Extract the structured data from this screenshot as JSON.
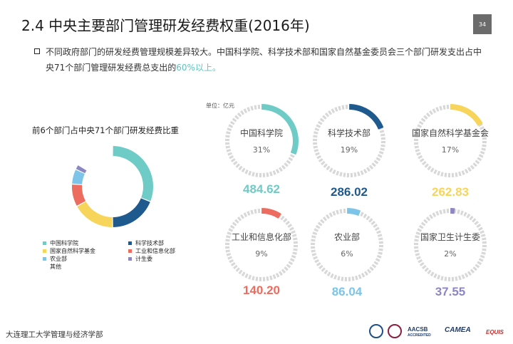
{
  "header": {
    "title": "2.4  中央主要部门管理研发经费权重(2016年)",
    "page_number": "34"
  },
  "description": {
    "text_main": "不同政府部门的研发经费管理规模差异较大。中国科学院、科学技术部和国家自然基金委员会三个部门研发支出占中央71个部门管理研发经费总支出的",
    "text_highlight": "60%以上。"
  },
  "unit_label": "单位：亿元",
  "footer": {
    "institution": "大连理工大学管理与经济学部",
    "logos": [
      "AACSB",
      "ACCREDITED",
      "CAMEA",
      "EQUIS"
    ]
  },
  "chart_data": [
    {
      "type": "pie",
      "title": "前6个部门占中央71个部门研发经费比重",
      "donut": true,
      "slices": [
        {
          "name": "中国科学院",
          "percent": 31,
          "color": "#6fcbc6"
        },
        {
          "name": "科学技术部",
          "percent": 19,
          "color": "#1f5a8f"
        },
        {
          "name": "国家自然科学基金",
          "percent": 17,
          "color": "#f7d45a"
        },
        {
          "name": "工业和信息化部",
          "percent": 9,
          "color": "#ec6c5f"
        },
        {
          "name": "农业部",
          "percent": 6,
          "color": "#7cc4e8"
        },
        {
          "name": "计生委",
          "percent": 2,
          "color": "#8c86c4"
        },
        {
          "name": "其他",
          "percent": 16,
          "color": "#ffffff"
        }
      ],
      "legend": [
        {
          "name": "中国科学院",
          "color": "#6fcbc6"
        },
        {
          "name": "科学技术部",
          "color": "#1f5a8f"
        },
        {
          "name": "国家自然科学基金",
          "color": "#f7d45a"
        },
        {
          "name": "工业和信息化部",
          "color": "#ec6c5f"
        },
        {
          "name": "农业部",
          "color": "#7cc4e8"
        },
        {
          "name": "计生委",
          "color": "#8c86c4"
        },
        {
          "name": "其他",
          "color": ""
        }
      ]
    },
    {
      "type": "pie",
      "title": "",
      "donut": true,
      "unit": "亿元",
      "categories": [
        "中国科学院",
        "科学技术部",
        "国家自然科学基金会",
        "工业和信息化部",
        "农业部",
        "国家卫生计生委"
      ],
      "values": [
        484.62,
        286.02,
        262.83,
        140.2,
        86.04,
        37.55
      ],
      "value_labels": [
        "484.62",
        "286.02",
        "262.83",
        "140.20",
        "86.04",
        "37.55"
      ],
      "percent_labels": [
        "31%",
        "19%",
        "17%",
        "9%",
        "6%",
        "2%"
      ],
      "percents": [
        31,
        19,
        17,
        9,
        6,
        2
      ],
      "colors": [
        "#6fcbc6",
        "#1f5a8f",
        "#f7d45a",
        "#ec6c5f",
        "#7cc4e8",
        "#8c86c4"
      ],
      "track_color": "#d8d8d8"
    }
  ]
}
